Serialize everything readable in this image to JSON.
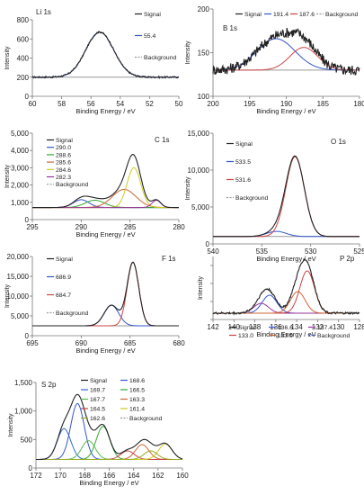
{
  "chart_data": [
    {
      "type": "line",
      "panel_label": "Li 1s",
      "xlabel": "Binding Energy / eV",
      "ylabel": "Intensity",
      "xlim": [
        60,
        50
      ],
      "ylim": [
        0,
        800
      ],
      "xticks": [
        60,
        58,
        56,
        54,
        52,
        50
      ],
      "yticks": [
        0,
        200,
        400,
        600,
        800
      ],
      "legend": [
        "Signal",
        "55.4",
        "Background"
      ],
      "baseline": 200,
      "peaks": [
        {
          "name": "55.4",
          "center": 55.4,
          "height": 472,
          "width": 0.95,
          "color": "#3355cc"
        }
      ],
      "signal_color": "#222222",
      "background_color": "#999999",
      "noise": 8
    },
    {
      "type": "line",
      "panel_label": "B 1s",
      "xlabel": "Binding Energy / eV",
      "ylabel": "Intensity",
      "xlim": [
        200,
        180
      ],
      "ylim": [
        100,
        200
      ],
      "xticks": [
        200,
        195,
        190,
        185,
        180
      ],
      "yticks": [
        100,
        150,
        200
      ],
      "legend": [
        "Signal",
        "191.4",
        "187.6",
        "Background"
      ],
      "baseline": 130,
      "peaks": [
        {
          "name": "191.4",
          "center": 191.4,
          "height": 36,
          "width": 2.6,
          "color": "#3355cc"
        },
        {
          "name": "187.6",
          "center": 187.6,
          "height": 26,
          "width": 1.9,
          "color": "#cc4444"
        }
      ],
      "signal_color": "#222222",
      "background_color": "#999999",
      "noise": 6
    },
    {
      "type": "line",
      "panel_label": "C 1s",
      "xlabel": "Binding Energy / eV",
      "ylabel": "Intensity",
      "xlim": [
        295,
        280
      ],
      "ylim": [
        0,
        5000
      ],
      "xticks": [
        295,
        290,
        285,
        280
      ],
      "yticks": [
        0,
        1000,
        2000,
        3000,
        4000,
        5000
      ],
      "ytick_labels": [
        "0",
        "1,000",
        "2,000",
        "3,000",
        "4,000",
        "5,000"
      ],
      "legend": [
        "Signal",
        "290.0",
        "288.6",
        "285.6",
        "284.6",
        "282.3",
        "Background"
      ],
      "baseline": 700,
      "peaks": [
        {
          "name": "290.0",
          "center": 290.0,
          "height": 450,
          "width": 0.8,
          "color": "#3355cc"
        },
        {
          "name": "288.6",
          "center": 288.6,
          "height": 420,
          "width": 1.0,
          "color": "#33aa33"
        },
        {
          "name": "285.6",
          "center": 285.6,
          "height": 1050,
          "width": 1.2,
          "color": "#cc6633"
        },
        {
          "name": "284.6",
          "center": 284.6,
          "height": 2300,
          "width": 0.7,
          "color": "#cccc22"
        },
        {
          "name": "282.3",
          "center": 282.3,
          "height": 420,
          "width": 0.45,
          "color": "#993399"
        }
      ],
      "signal_color": "#222222",
      "background_color": "#999999",
      "noise": 0
    },
    {
      "type": "line",
      "panel_label": "O 1s",
      "xlabel": "Binding Energy / eV",
      "ylabel": "Intensity",
      "xlim": [
        540,
        525
      ],
      "ylim": [
        0,
        15000
      ],
      "xticks": [
        540,
        535,
        530,
        525
      ],
      "yticks": [
        0,
        5000,
        10000,
        15000
      ],
      "ytick_labels": [
        "0",
        "5,000",
        "10,000",
        "15,000"
      ],
      "legend": [
        "Signal",
        "533.5",
        "531.6",
        "Background"
      ],
      "baseline": 1000,
      "peaks": [
        {
          "name": "533.5",
          "center": 533.5,
          "height": 700,
          "width": 1.0,
          "color": "#3355cc"
        },
        {
          "name": "531.6",
          "center": 531.6,
          "height": 10800,
          "width": 0.95,
          "color": "#cc4444"
        }
      ],
      "signal_color": "#222222",
      "background_color": "#999999",
      "noise": 0
    },
    {
      "type": "line",
      "panel_label": "F 1s",
      "xlabel": "Binding Energy / eV",
      "ylabel": "Intensity",
      "xlim": [
        695,
        680
      ],
      "ylim": [
        0,
        20000
      ],
      "xticks": [
        695,
        690,
        685,
        680
      ],
      "yticks": [
        0,
        5000,
        10000,
        15000,
        20000
      ],
      "ytick_labels": [
        "0",
        "5,000",
        "10,000",
        "15,000",
        "20,000"
      ],
      "legend": [
        "Signal",
        "686.9",
        "684.7",
        "Background"
      ],
      "baseline": 2500,
      "peaks": [
        {
          "name": "686.9",
          "center": 686.9,
          "height": 5200,
          "width": 0.75,
          "color": "#3355cc"
        },
        {
          "name": "684.7",
          "center": 684.7,
          "height": 16000,
          "width": 0.6,
          "color": "#cc4444"
        }
      ],
      "signal_color": "#222222",
      "background_color": "#999999",
      "noise": 0
    },
    {
      "type": "line",
      "panel_label": "P 2p",
      "xlabel": "Binding Energy / eV",
      "ylabel": "Intensity",
      "xlim": [
        142,
        128
      ],
      "ylim": [
        150,
        500
      ],
      "xticks": [
        142,
        140,
        138,
        136,
        134,
        132,
        130,
        128
      ],
      "yticks": [
        150,
        250,
        350,
        450
      ],
      "show_ytick_labels": false,
      "legend": [
        "Signal",
        "136.6",
        "137.4",
        "133.0",
        "133.9",
        "Background"
      ],
      "baseline": 185,
      "peaks": [
        {
          "name": "136.6",
          "center": 136.6,
          "height": 100,
          "width": 0.7,
          "color": "#3355cc"
        },
        {
          "name": "137.4",
          "center": 137.4,
          "height": 55,
          "width": 0.7,
          "color": "#993399"
        },
        {
          "name": "133.0",
          "center": 133.0,
          "height": 235,
          "width": 0.7,
          "color": "#cc4444"
        },
        {
          "name": "133.9",
          "center": 133.9,
          "height": 120,
          "width": 0.7,
          "color": "#cc6633"
        }
      ],
      "signal_color": "#222222",
      "background_color": "#3355cc",
      "noise": 6
    },
    {
      "type": "line",
      "panel_label": "S 2p",
      "xlabel": "Binding Energy / eV",
      "ylabel": "Intensity",
      "xlim": [
        172,
        160
      ],
      "ylim": [
        0,
        1500
      ],
      "xticks": [
        172,
        170,
        168,
        166,
        164,
        162,
        160
      ],
      "yticks": [
        0,
        500,
        1000,
        1500
      ],
      "ytick_labels": [
        "0",
        "500",
        "1,000",
        "1,500"
      ],
      "legend": [
        "Signal",
        "168.6",
        "169.7",
        "166.5",
        "167.7",
        "163.3",
        "164.5",
        "161.4",
        "162.6",
        "Background"
      ],
      "baseline": 150,
      "peaks": [
        {
          "name": "168.6",
          "center": 168.6,
          "height": 980,
          "width": 0.55,
          "color": "#3355cc"
        },
        {
          "name": "169.7",
          "center": 169.7,
          "height": 540,
          "width": 0.55,
          "color": "#3366dd"
        },
        {
          "name": "166.5",
          "center": 166.5,
          "height": 580,
          "width": 0.55,
          "color": "#33aa33"
        },
        {
          "name": "167.7",
          "center": 167.7,
          "height": 330,
          "width": 0.55,
          "color": "#55bb55"
        },
        {
          "name": "163.3",
          "center": 163.3,
          "height": 260,
          "width": 0.55,
          "color": "#cc6633"
        },
        {
          "name": "164.5",
          "center": 164.5,
          "height": 150,
          "width": 0.55,
          "color": "#cc4444"
        },
        {
          "name": "161.4",
          "center": 161.4,
          "height": 270,
          "width": 0.55,
          "color": "#cccc22"
        },
        {
          "name": "162.6",
          "center": 162.6,
          "height": 150,
          "width": 0.55,
          "color": "#99aa22"
        }
      ],
      "signal_color": "#222222",
      "background_color": "#999999",
      "noise": 0
    }
  ]
}
